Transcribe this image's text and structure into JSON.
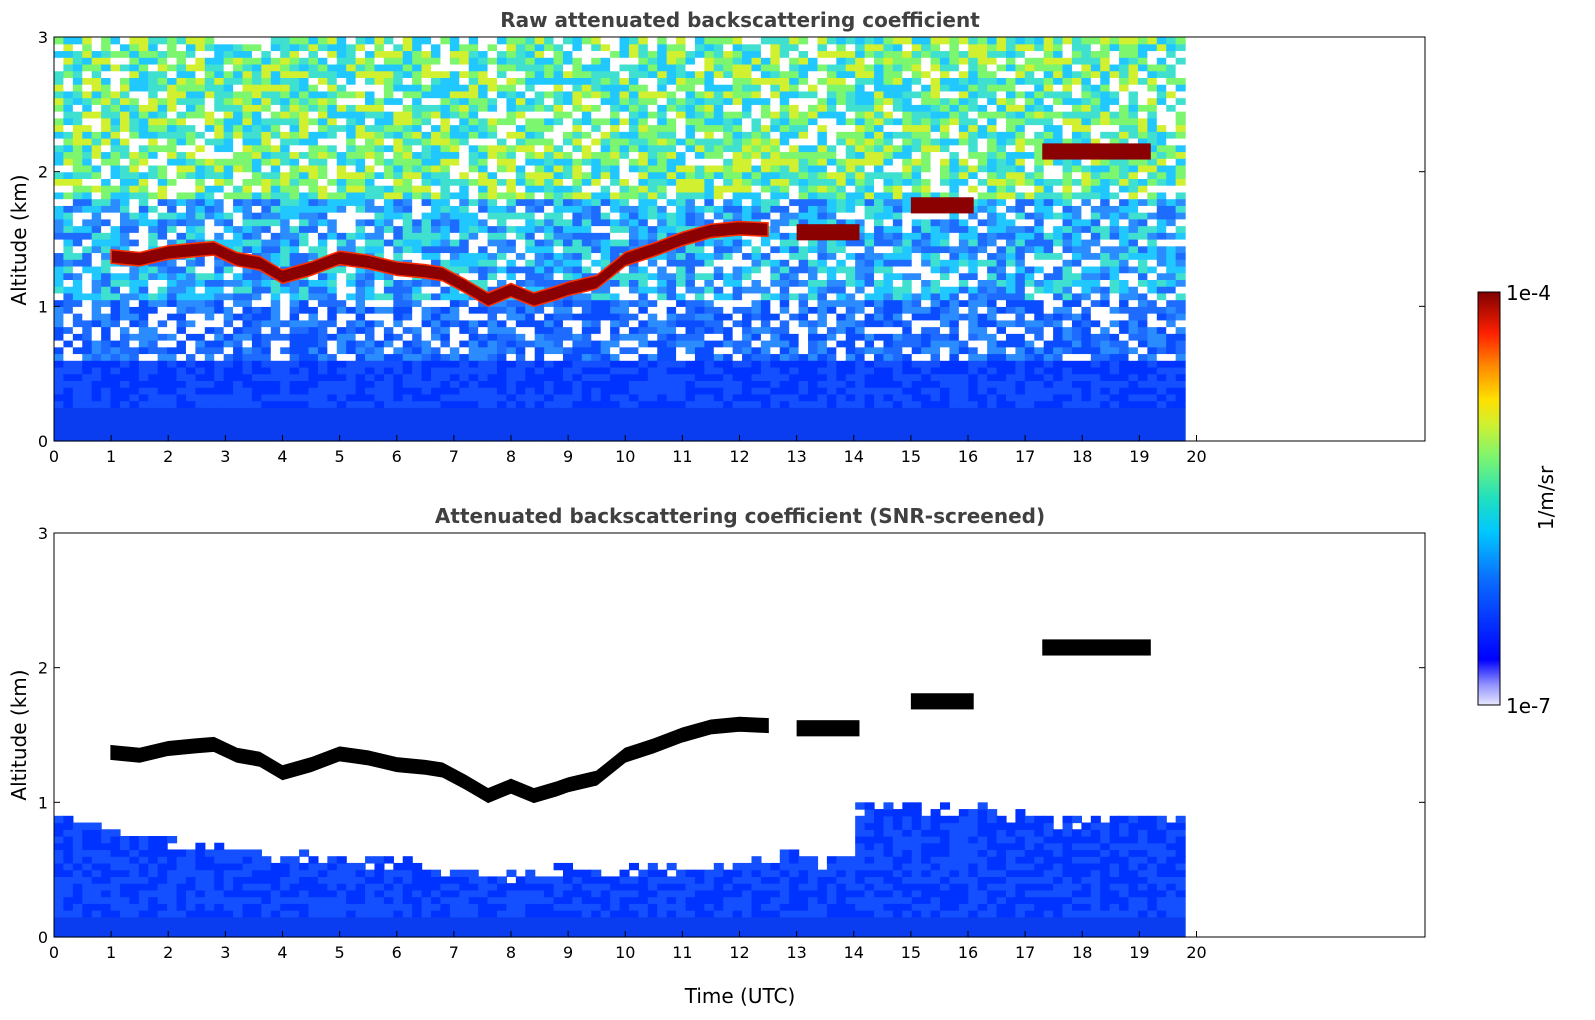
{
  "chart_data": [
    {
      "type": "heatmap",
      "title": "Raw attenuated backscattering coefficient",
      "xlabel": "",
      "ylabel": "Altitude (km)",
      "xlim": [
        0,
        24
      ],
      "ylim": [
        0,
        3
      ],
      "x_ticks": [
        "0",
        "1",
        "2",
        "3",
        "4",
        "5",
        "6",
        "7",
        "8",
        "9",
        "10",
        "11",
        "12",
        "13",
        "14",
        "15",
        "16",
        "17",
        "18",
        "19",
        "20"
      ],
      "y_ticks": [
        "0",
        "1",
        "2",
        "3"
      ],
      "data_time_range": [
        0,
        19.8
      ],
      "noise_top_color_intensity": 0.55,
      "cloud_layer": {
        "time": [
          1.0,
          1.5,
          2.0,
          2.5,
          2.8,
          3.2,
          3.6,
          4.0,
          4.5,
          5.0,
          5.5,
          6.0,
          6.5,
          6.8,
          7.2,
          7.6,
          8.0,
          8.4,
          8.8,
          9.0,
          9.5,
          10.0,
          10.5,
          11.0,
          11.5,
          12.0,
          12.5
        ],
        "altitude_km": [
          1.37,
          1.35,
          1.4,
          1.42,
          1.43,
          1.35,
          1.32,
          1.22,
          1.28,
          1.36,
          1.33,
          1.28,
          1.26,
          1.24,
          1.15,
          1.05,
          1.12,
          1.05,
          1.1,
          1.13,
          1.18,
          1.35,
          1.42,
          1.5,
          1.56,
          1.58,
          1.57
        ]
      },
      "cloud_fragments": [
        {
          "time": [
            13.0,
            14.1
          ],
          "altitude_km": 1.55
        },
        {
          "time": [
            15.0,
            16.1
          ],
          "altitude_km": 1.75
        },
        {
          "time": [
            17.3,
            19.2
          ],
          "altitude_km": 2.15
        }
      ],
      "colorbar": {
        "min_label": "1e-7",
        "max_label": "1e-4",
        "label": "1/m/sr",
        "scale": "log"
      }
    },
    {
      "type": "heatmap",
      "title": "Attenuated backscattering coefficient (SNR-screened)",
      "xlabel": "Time (UTC)",
      "ylabel": "Altitude (km)",
      "xlim": [
        0,
        24
      ],
      "ylim": [
        0,
        3
      ],
      "x_ticks": [
        "0",
        "1",
        "2",
        "3",
        "4",
        "5",
        "6",
        "7",
        "8",
        "9",
        "10",
        "11",
        "12",
        "13",
        "14",
        "15",
        "16",
        "17",
        "18",
        "19",
        "20"
      ],
      "y_ticks": [
        "0",
        "1",
        "2",
        "3"
      ],
      "data_time_range": [
        0,
        19.8
      ],
      "boundary_layer_top": {
        "time": [
          0,
          1,
          2,
          3,
          4,
          5,
          6,
          7,
          8,
          9,
          10,
          11,
          12,
          13,
          14,
          14.1,
          15,
          16,
          17,
          18,
          19,
          19.8
        ],
        "altitude_km": [
          0.9,
          0.8,
          0.7,
          0.65,
          0.62,
          0.58,
          0.55,
          0.5,
          0.45,
          0.5,
          0.5,
          0.52,
          0.55,
          0.6,
          0.55,
          0.95,
          0.95,
          0.95,
          0.9,
          0.85,
          0.9,
          0.9
        ]
      },
      "cloud_color": "#000000",
      "colorbar": {
        "min_label": "1e-7",
        "max_label": "1e-4",
        "label": "1/m/sr",
        "scale": "log"
      }
    }
  ]
}
